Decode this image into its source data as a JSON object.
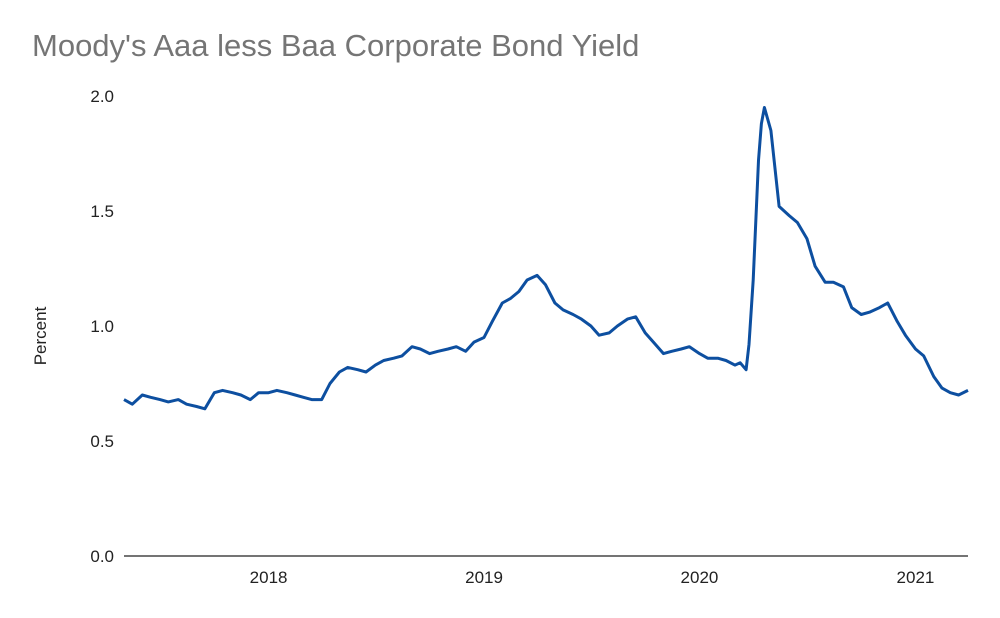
{
  "chart_data": {
    "type": "line",
    "title": "Moody's Aaa less Baa Corporate Bond Yield",
    "xlabel": "",
    "ylabel": "Percent",
    "ylim": [
      0,
      2.0
    ],
    "yticks": [
      "0.0",
      "0.5",
      "1.0",
      "1.5",
      "2.0"
    ],
    "xlim": [
      "2017-05-01",
      "2021-03-31"
    ],
    "xticks": [
      {
        "label": "2018",
        "date": "2018-01-01"
      },
      {
        "label": "2019",
        "date": "2019-01-01"
      },
      {
        "label": "2020",
        "date": "2020-01-01"
      },
      {
        "label": "2021",
        "date": "2021-01-01"
      }
    ],
    "grid": false,
    "legend": "none",
    "series": [
      {
        "color": "#0d4fa0",
        "x": [
          "2017-05-01",
          "2017-05-15",
          "2017-06-01",
          "2017-06-15",
          "2017-07-01",
          "2017-07-15",
          "2017-08-01",
          "2017-08-15",
          "2017-09-01",
          "2017-09-15",
          "2017-10-01",
          "2017-10-15",
          "2017-11-01",
          "2017-11-15",
          "2017-12-01",
          "2017-12-15",
          "2018-01-01",
          "2018-01-15",
          "2018-02-01",
          "2018-02-15",
          "2018-03-01",
          "2018-03-15",
          "2018-04-01",
          "2018-04-15",
          "2018-05-01",
          "2018-05-15",
          "2018-06-01",
          "2018-06-15",
          "2018-07-01",
          "2018-07-15",
          "2018-08-01",
          "2018-08-15",
          "2018-09-01",
          "2018-09-15",
          "2018-10-01",
          "2018-10-15",
          "2018-11-01",
          "2018-11-15",
          "2018-12-01",
          "2018-12-15",
          "2019-01-01",
          "2019-01-15",
          "2019-02-01",
          "2019-02-15",
          "2019-03-01",
          "2019-03-15",
          "2019-04-01",
          "2019-04-15",
          "2019-05-01",
          "2019-05-15",
          "2019-06-01",
          "2019-06-15",
          "2019-07-01",
          "2019-07-15",
          "2019-08-01",
          "2019-08-15",
          "2019-09-01",
          "2019-09-15",
          "2019-10-01",
          "2019-10-15",
          "2019-11-01",
          "2019-11-15",
          "2019-12-01",
          "2019-12-15",
          "2020-01-01",
          "2020-01-15",
          "2020-02-01",
          "2020-02-15",
          "2020-03-01",
          "2020-03-10",
          "2020-03-20",
          "2020-03-25",
          "2020-04-01",
          "2020-04-10",
          "2020-04-15",
          "2020-04-20",
          "2020-05-01",
          "2020-05-15",
          "2020-06-01",
          "2020-06-15",
          "2020-07-01",
          "2020-07-15",
          "2020-08-01",
          "2020-08-15",
          "2020-09-01",
          "2020-09-15",
          "2020-10-01",
          "2020-10-15",
          "2020-11-01",
          "2020-11-15",
          "2020-12-01",
          "2020-12-15",
          "2021-01-01",
          "2021-01-15",
          "2021-02-01",
          "2021-02-15",
          "2021-03-01",
          "2021-03-15",
          "2021-03-31"
        ],
        "values": [
          0.68,
          0.66,
          0.7,
          0.69,
          0.68,
          0.67,
          0.68,
          0.66,
          0.65,
          0.64,
          0.71,
          0.72,
          0.71,
          0.7,
          0.68,
          0.71,
          0.71,
          0.72,
          0.71,
          0.7,
          0.69,
          0.68,
          0.68,
          0.75,
          0.8,
          0.82,
          0.81,
          0.8,
          0.83,
          0.85,
          0.86,
          0.87,
          0.91,
          0.9,
          0.88,
          0.89,
          0.9,
          0.91,
          0.89,
          0.93,
          0.95,
          1.02,
          1.1,
          1.12,
          1.15,
          1.2,
          1.22,
          1.18,
          1.1,
          1.07,
          1.05,
          1.03,
          1.0,
          0.96,
          0.97,
          1.0,
          1.03,
          1.04,
          0.97,
          0.93,
          0.88,
          0.89,
          0.9,
          0.91,
          0.88,
          0.86,
          0.86,
          0.85,
          0.83,
          0.84,
          0.81,
          0.92,
          1.2,
          1.72,
          1.88,
          1.95,
          1.85,
          1.52,
          1.48,
          1.45,
          1.38,
          1.26,
          1.19,
          1.19,
          1.17,
          1.08,
          1.05,
          1.06,
          1.08,
          1.1,
          1.02,
          0.96,
          0.9,
          0.87,
          0.78,
          0.73,
          0.71,
          0.7,
          0.72
        ]
      }
    ]
  }
}
